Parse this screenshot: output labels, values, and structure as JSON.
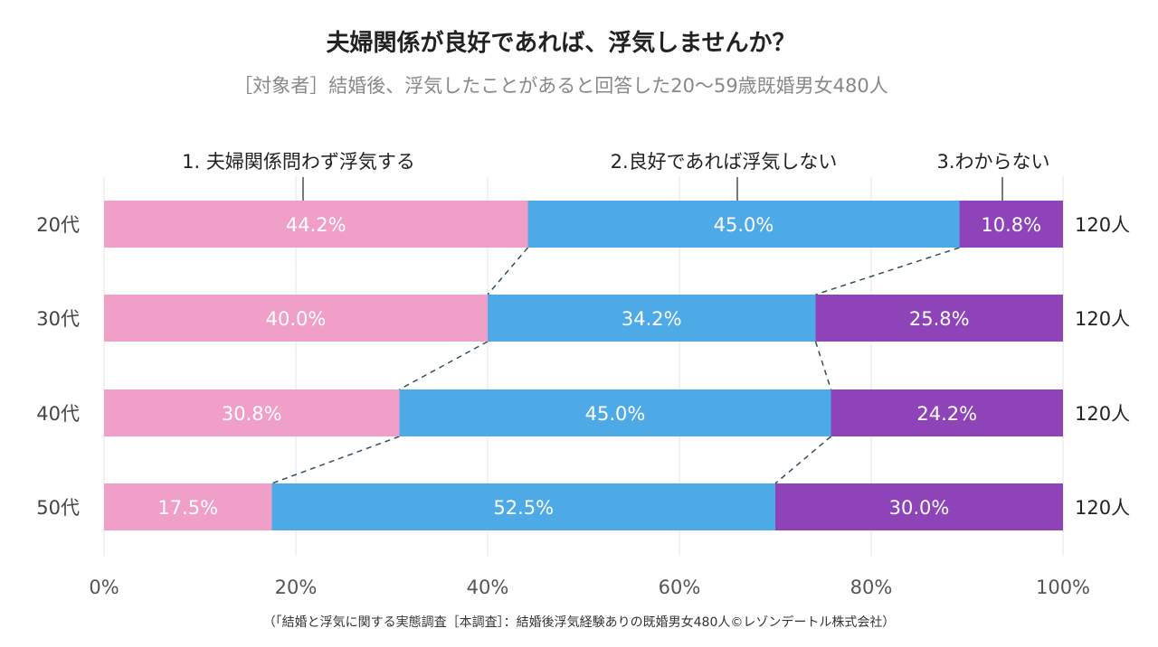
{
  "chart_data": {
    "type": "bar",
    "orientation": "horizontal",
    "stacked": "100%",
    "title": "夫婦関係が良好であれば、浮気しませんか？",
    "subtitle": "［対象者］結婚後、浮気したことがあると回答した20～59歳既婚男女480人",
    "categories": [
      "20代",
      "30代",
      "40代",
      "50代"
    ],
    "totals": [
      "120人",
      "120人",
      "120人",
      "120人"
    ],
    "series": [
      {
        "name": "1. 夫婦関係問わず浮気する",
        "values": [
          44.2,
          40.0,
          30.8,
          17.5
        ],
        "labels": [
          "44.2%",
          "40.0%",
          "30.8%",
          "17.5%"
        ],
        "color": "#f0a0c8"
      },
      {
        "name": "2.良好であれば浮気しない",
        "values": [
          45.0,
          34.2,
          45.0,
          52.5
        ],
        "labels": [
          "45.0%",
          "34.2%",
          "45.0%",
          "52.5%"
        ],
        "color": "#4eaae6"
      },
      {
        "name": "3.わからない",
        "values": [
          10.8,
          25.8,
          24.2,
          30.0
        ],
        "labels": [
          "10.8%",
          "25.8%",
          "24.2%",
          "30.0%"
        ],
        "color": "#8e44b8"
      }
    ],
    "xlim": [
      0,
      100
    ],
    "xticks": [
      "0%",
      "20%",
      "40%",
      "60%",
      "80%",
      "100%"
    ],
    "grid": true,
    "legend_placement": "top",
    "connector_lines": "dashed",
    "source": "（「結婚と浮気に関する実態調査［本調査］：結婚後浮気経験ありの既婚男女480人©レゾンデートル株式会社）"
  }
}
